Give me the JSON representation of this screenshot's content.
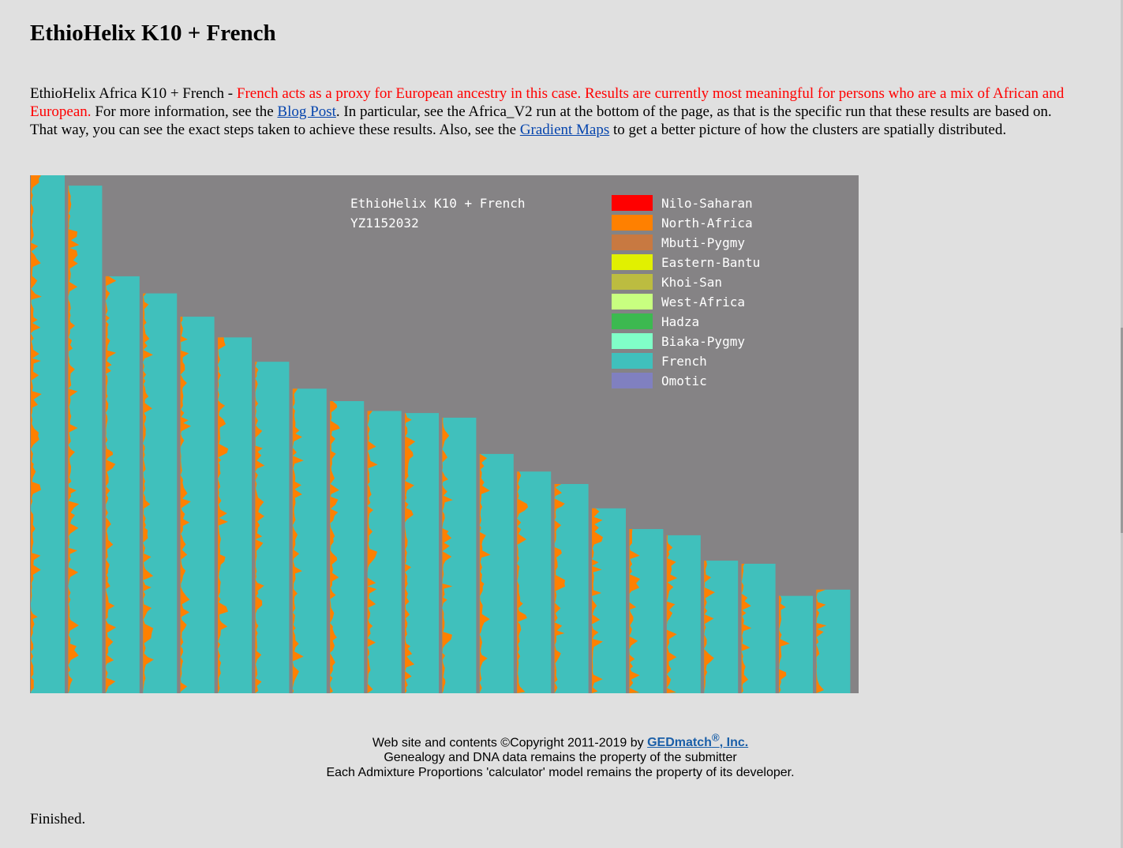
{
  "page": {
    "title": "EthioHelix K10 + French",
    "intro": {
      "lead": "EthioHelix Africa K10 + French - ",
      "red": "French acts as a proxy for European ancestry in this case. Results are currently most meaningful for persons who are a mix of African and European.",
      "p2": " For more information, see the ",
      "link1": "Blog Post",
      "p3": ". In particular, see the Africa_V2 run at the bottom of the page, as that is the specific run that these results are based on. That way, you can see the exact steps taken to achieve these results. Also, see the ",
      "link2": "Gradient Maps",
      "p4": " to get a better picture of how the clusters are spatially distributed."
    },
    "finished": "Finished."
  },
  "footer": {
    "line1_pre": "Web site and contents ©Copyright 2011-2019 by ",
    "brand": "GEDmatch",
    "reg": "®",
    "brand_suffix": ", Inc.",
    "line2": "Genealogy and DNA data remains the property of the submitter",
    "line3": "Each Admixture Proportions 'calculator' model remains the property of its developer."
  },
  "chart_data": {
    "type": "bar",
    "title": "EthioHelix K10 + French",
    "subtitle": "YZ1152032",
    "ylim": [
      0,
      1
    ],
    "background": "#858385",
    "note": "Chromosome painting: 22 columns, height = relative chromosome length (tallest = 1.0)",
    "values": [
      1.0,
      0.98,
      0.805,
      0.772,
      0.727,
      0.687,
      0.64,
      0.588,
      0.564,
      0.545,
      0.541,
      0.532,
      0.462,
      0.428,
      0.404,
      0.357,
      0.317,
      0.305,
      0.256,
      0.25,
      0.188,
      0.2
    ],
    "legend": [
      {
        "name": "Nilo-Saharan",
        "color": "#ff0000"
      },
      {
        "name": "North-Africa",
        "color": "#ff8000"
      },
      {
        "name": "Mbuti-Pygmy",
        "color": "#c87941"
      },
      {
        "name": "Eastern-Bantu",
        "color": "#e1f000"
      },
      {
        "name": "Khoi-San",
        "color": "#bcbc40"
      },
      {
        "name": "West-Africa",
        "color": "#c8ff80"
      },
      {
        "name": "Hadza",
        "color": "#3cb950"
      },
      {
        "name": "Biaka-Pygmy",
        "color": "#80ffc8"
      },
      {
        "name": "French",
        "color": "#40c0bc"
      },
      {
        "name": "Omotic",
        "color": "#8080c0"
      }
    ]
  }
}
